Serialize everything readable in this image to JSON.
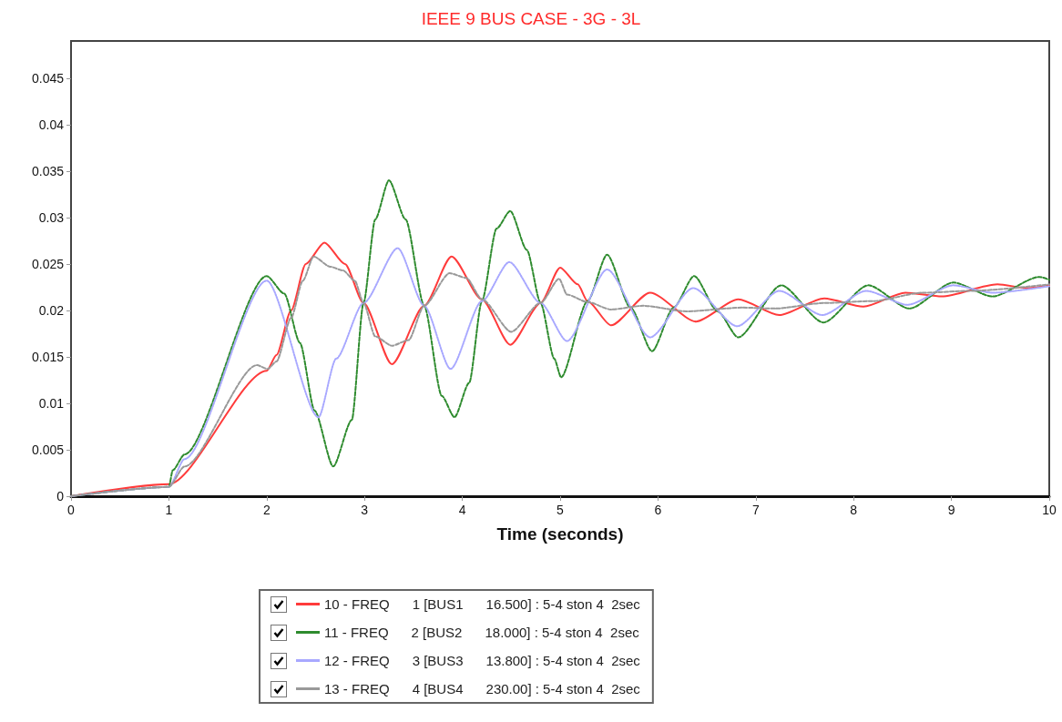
{
  "chart_data": {
    "type": "line",
    "title": "IEEE 9 BUS CASE - 3G - 3L",
    "xlabel": "Time (seconds)",
    "xlim": [
      0,
      10
    ],
    "xticks": [
      0,
      1,
      2,
      3,
      4,
      5,
      6,
      7,
      8,
      9,
      10
    ],
    "ylim": [
      0,
      0.049
    ],
    "yticks": [
      0,
      0.005,
      0.01,
      0.015,
      0.02,
      0.025,
      0.03,
      0.035,
      0.04,
      0.045
    ],
    "grid": false,
    "legend": "bottom",
    "marker": "none",
    "series": [
      {
        "name": "10 - FREQ      1 [BUS1      16.500] : 5-4 ston 4  2sec",
        "color": "#ff3b3b",
        "line_style": "solid",
        "x": [
          0,
          1,
          2,
          2.1,
          2.25,
          2.4,
          2.59,
          2.8,
          2.99,
          3.28,
          3.61,
          3.89,
          4.2,
          4.49,
          4.8,
          5.0,
          5.18,
          5.28,
          5.52,
          5.92,
          6.39,
          6.82,
          7.24,
          7.7,
          8.1,
          8.53,
          8.9,
          9.47,
          9.78,
          10
        ],
        "values": [
          0,
          0.0013,
          0.0135,
          0.0152,
          0.02,
          0.025,
          0.0273,
          0.025,
          0.0208,
          0.0142,
          0.0205,
          0.0258,
          0.0212,
          0.0163,
          0.0208,
          0.0246,
          0.0228,
          0.021,
          0.0184,
          0.0219,
          0.0188,
          0.0212,
          0.0195,
          0.0213,
          0.0204,
          0.0219,
          0.0215,
          0.0228,
          0.0224,
          0.0227
        ]
      },
      {
        "name": "11 - FREQ      2 [BUS2      18.000] : 5-4 ston 4  2sec",
        "color": "#2e8b2e",
        "line_style": "dashed",
        "x": [
          0,
          1,
          1.04,
          1.16,
          2.0,
          2.18,
          2.34,
          2.49,
          2.68,
          2.87,
          2.99,
          3.11,
          3.25,
          3.42,
          3.61,
          3.79,
          3.92,
          4.07,
          4.2,
          4.35,
          4.49,
          4.66,
          4.8,
          4.94,
          5.01,
          5.28,
          5.48,
          5.72,
          5.94,
          6.16,
          6.37,
          6.61,
          6.82,
          7.26,
          7.69,
          8.15,
          8.57,
          9.02,
          9.42,
          9.9,
          10
        ],
        "values": [
          0,
          0.001,
          0.0028,
          0.0045,
          0.0237,
          0.0218,
          0.0165,
          0.0092,
          0.0032,
          0.0082,
          0.0208,
          0.0298,
          0.034,
          0.0298,
          0.0205,
          0.0108,
          0.0085,
          0.0122,
          0.021,
          0.0288,
          0.0307,
          0.0265,
          0.0208,
          0.0148,
          0.0128,
          0.021,
          0.026,
          0.0203,
          0.0156,
          0.0203,
          0.0237,
          0.0199,
          0.0171,
          0.0227,
          0.0187,
          0.0227,
          0.0202,
          0.023,
          0.0215,
          0.0236,
          0.0233
        ]
      },
      {
        "name": "12 - FREQ      3 [BUS3      13.800] : 5-4 ston 4  2sec",
        "color": "#a8a8ff",
        "line_style": "dotted",
        "x": [
          0,
          1,
          1.16,
          2.0,
          2.53,
          2.71,
          2.99,
          3.34,
          3.61,
          3.88,
          4.2,
          4.48,
          4.8,
          5.07,
          5.48,
          5.92,
          6.36,
          6.81,
          7.24,
          7.68,
          8.13,
          8.55,
          9.02,
          9.42,
          10
        ],
        "values": [
          0,
          0.001,
          0.004,
          0.0232,
          0.0085,
          0.0148,
          0.0208,
          0.0267,
          0.0205,
          0.0137,
          0.021,
          0.0252,
          0.0208,
          0.0167,
          0.0244,
          0.0171,
          0.0224,
          0.0183,
          0.0221,
          0.0195,
          0.0221,
          0.0206,
          0.0227,
          0.0219,
          0.0226
        ]
      },
      {
        "name": "13 - FREQ      4 [BUS4      230.00] : 5-4 ston 4  2sec",
        "color": "#999999",
        "line_style": "dashed",
        "x": [
          0,
          1,
          1.16,
          1.9,
          2.01,
          2.1,
          2.25,
          2.37,
          2.48,
          2.65,
          2.78,
          2.9,
          2.99,
          3.11,
          3.28,
          3.45,
          3.61,
          3.87,
          4.04,
          4.2,
          4.5,
          4.8,
          4.99,
          5.07,
          5.28,
          5.52,
          5.85,
          6.29,
          6.86,
          7.2,
          7.7,
          8.2,
          8.7,
          9.2,
          10
        ],
        "values": [
          0,
          0.001,
          0.0032,
          0.0141,
          0.0137,
          0.0145,
          0.0192,
          0.0232,
          0.0258,
          0.0247,
          0.0243,
          0.0232,
          0.0208,
          0.0172,
          0.0162,
          0.0168,
          0.0205,
          0.024,
          0.0235,
          0.0212,
          0.0177,
          0.0208,
          0.0234,
          0.0217,
          0.0209,
          0.0201,
          0.0205,
          0.0199,
          0.0203,
          0.0202,
          0.0208,
          0.021,
          0.0219,
          0.0221,
          0.0228
        ]
      }
    ]
  }
}
